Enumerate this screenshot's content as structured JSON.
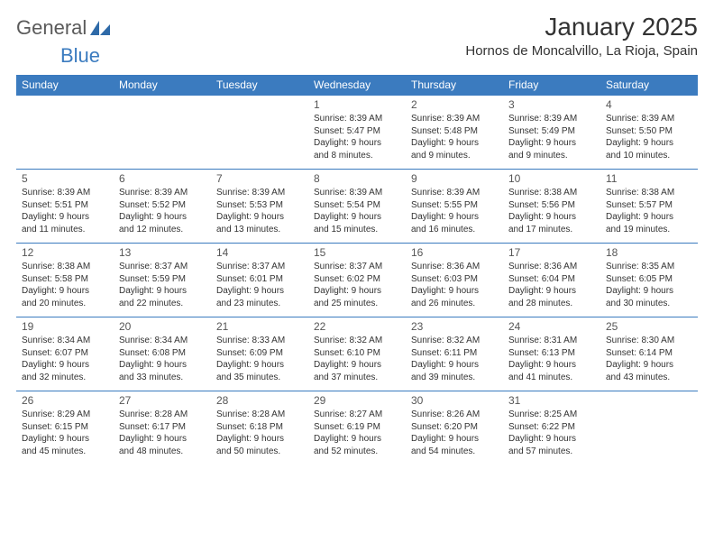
{
  "logo": {
    "word1": "General",
    "word2": "Blue"
  },
  "title": "January 2025",
  "location": "Hornos de Moncalvillo, La Rioja, Spain",
  "colors": {
    "header_blue": "#3b7bbf",
    "text": "#333333",
    "logo_gray": "#5a5a5a",
    "background": "#ffffff"
  },
  "day_headers": [
    "Sunday",
    "Monday",
    "Tuesday",
    "Wednesday",
    "Thursday",
    "Friday",
    "Saturday"
  ],
  "calendar": {
    "type": "table",
    "columns": 7,
    "rows": 5,
    "first_weekday_index": 3,
    "days": [
      {
        "n": 1,
        "sunrise": "8:39 AM",
        "sunset": "5:47 PM",
        "dlh": 9,
        "dlm": 8
      },
      {
        "n": 2,
        "sunrise": "8:39 AM",
        "sunset": "5:48 PM",
        "dlh": 9,
        "dlm": 9
      },
      {
        "n": 3,
        "sunrise": "8:39 AM",
        "sunset": "5:49 PM",
        "dlh": 9,
        "dlm": 9
      },
      {
        "n": 4,
        "sunrise": "8:39 AM",
        "sunset": "5:50 PM",
        "dlh": 9,
        "dlm": 10
      },
      {
        "n": 5,
        "sunrise": "8:39 AM",
        "sunset": "5:51 PM",
        "dlh": 9,
        "dlm": 11
      },
      {
        "n": 6,
        "sunrise": "8:39 AM",
        "sunset": "5:52 PM",
        "dlh": 9,
        "dlm": 12
      },
      {
        "n": 7,
        "sunrise": "8:39 AM",
        "sunset": "5:53 PM",
        "dlh": 9,
        "dlm": 13
      },
      {
        "n": 8,
        "sunrise": "8:39 AM",
        "sunset": "5:54 PM",
        "dlh": 9,
        "dlm": 15
      },
      {
        "n": 9,
        "sunrise": "8:39 AM",
        "sunset": "5:55 PM",
        "dlh": 9,
        "dlm": 16
      },
      {
        "n": 10,
        "sunrise": "8:38 AM",
        "sunset": "5:56 PM",
        "dlh": 9,
        "dlm": 17
      },
      {
        "n": 11,
        "sunrise": "8:38 AM",
        "sunset": "5:57 PM",
        "dlh": 9,
        "dlm": 19
      },
      {
        "n": 12,
        "sunrise": "8:38 AM",
        "sunset": "5:58 PM",
        "dlh": 9,
        "dlm": 20
      },
      {
        "n": 13,
        "sunrise": "8:37 AM",
        "sunset": "5:59 PM",
        "dlh": 9,
        "dlm": 22
      },
      {
        "n": 14,
        "sunrise": "8:37 AM",
        "sunset": "6:01 PM",
        "dlh": 9,
        "dlm": 23
      },
      {
        "n": 15,
        "sunrise": "8:37 AM",
        "sunset": "6:02 PM",
        "dlh": 9,
        "dlm": 25
      },
      {
        "n": 16,
        "sunrise": "8:36 AM",
        "sunset": "6:03 PM",
        "dlh": 9,
        "dlm": 26
      },
      {
        "n": 17,
        "sunrise": "8:36 AM",
        "sunset": "6:04 PM",
        "dlh": 9,
        "dlm": 28
      },
      {
        "n": 18,
        "sunrise": "8:35 AM",
        "sunset": "6:05 PM",
        "dlh": 9,
        "dlm": 30
      },
      {
        "n": 19,
        "sunrise": "8:34 AM",
        "sunset": "6:07 PM",
        "dlh": 9,
        "dlm": 32
      },
      {
        "n": 20,
        "sunrise": "8:34 AM",
        "sunset": "6:08 PM",
        "dlh": 9,
        "dlm": 33
      },
      {
        "n": 21,
        "sunrise": "8:33 AM",
        "sunset": "6:09 PM",
        "dlh": 9,
        "dlm": 35
      },
      {
        "n": 22,
        "sunrise": "8:32 AM",
        "sunset": "6:10 PM",
        "dlh": 9,
        "dlm": 37
      },
      {
        "n": 23,
        "sunrise": "8:32 AM",
        "sunset": "6:11 PM",
        "dlh": 9,
        "dlm": 39
      },
      {
        "n": 24,
        "sunrise": "8:31 AM",
        "sunset": "6:13 PM",
        "dlh": 9,
        "dlm": 41
      },
      {
        "n": 25,
        "sunrise": "8:30 AM",
        "sunset": "6:14 PM",
        "dlh": 9,
        "dlm": 43
      },
      {
        "n": 26,
        "sunrise": "8:29 AM",
        "sunset": "6:15 PM",
        "dlh": 9,
        "dlm": 45
      },
      {
        "n": 27,
        "sunrise": "8:28 AM",
        "sunset": "6:17 PM",
        "dlh": 9,
        "dlm": 48
      },
      {
        "n": 28,
        "sunrise": "8:28 AM",
        "sunset": "6:18 PM",
        "dlh": 9,
        "dlm": 50
      },
      {
        "n": 29,
        "sunrise": "8:27 AM",
        "sunset": "6:19 PM",
        "dlh": 9,
        "dlm": 52
      },
      {
        "n": 30,
        "sunrise": "8:26 AM",
        "sunset": "6:20 PM",
        "dlh": 9,
        "dlm": 54
      },
      {
        "n": 31,
        "sunrise": "8:25 AM",
        "sunset": "6:22 PM",
        "dlh": 9,
        "dlm": 57
      }
    ]
  },
  "labels": {
    "sunrise_prefix": "Sunrise: ",
    "sunset_prefix": "Sunset: ",
    "daylight_prefix": "Daylight: ",
    "hours_word": " hours",
    "and_word": "and ",
    "minutes_word": " minutes."
  }
}
